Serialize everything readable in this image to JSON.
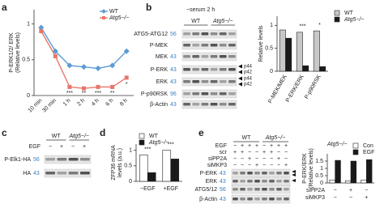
{
  "panel_labels": [
    "a",
    "b",
    "c",
    "d",
    "e"
  ],
  "chart_data": [
    {
      "type": "line",
      "ylabel": [
        "P-ERK1/2/ ERK",
        "(Relative levels)"
      ],
      "categories": [
        "10 min",
        "30 min",
        "1 h",
        "2 h",
        "4 h",
        "6 h",
        "8 h"
      ],
      "series": [
        {
          "name": "WT",
          "color": "#5b9bd5",
          "values": [
            0.95,
            0.62,
            0.42,
            0.4,
            0.38,
            0.42,
            0.62
          ]
        },
        {
          "name": "Atg5−/−",
          "color": "#e8766a",
          "values": [
            0.9,
            0.55,
            0.12,
            0.1,
            0.12,
            0.12,
            0.25
          ]
        }
      ],
      "ylim": [
        0,
        1.2
      ],
      "yticks": [
        0,
        0.5,
        1
      ],
      "significance": [
        null,
        null,
        "***",
        "**",
        "***",
        "**",
        "*"
      ],
      "legend": "upper right"
    },
    {
      "type": "bar",
      "ylabel": [
        "Relative levels"
      ],
      "categories": [
        "P-MEK/MEK",
        "P-ERK/ERK",
        "P-p90RSK"
      ],
      "series": [
        {
          "name": "WT",
          "color": "#c8c8c8",
          "values": [
            0.9,
            0.85,
            0.88
          ]
        },
        {
          "name": "Atg5−/−",
          "color": "#1a1a1a",
          "values": [
            0.72,
            0.12,
            0.1
          ]
        }
      ],
      "ylim": [
        0,
        1.2
      ],
      "yticks": [
        0,
        0.5,
        1
      ],
      "significance": [
        null,
        "***",
        "*"
      ],
      "legend": "right"
    },
    {
      "type": "bar",
      "ylabel": [
        "ZFP36 mRNA",
        "levels (a.u.)"
      ],
      "categories": [
        "−EGF",
        "+EGF"
      ],
      "series": [
        {
          "name": "WT",
          "color": "#ffffff",
          "values": [
            0.85,
            1.0
          ]
        },
        {
          "name": "Atg5−/−",
          "color": "#1a1a1a",
          "values": [
            0.28,
            0.72
          ]
        }
      ],
      "ylim": [
        0,
        1.2
      ],
      "yticks": [
        0,
        0.5,
        1
      ],
      "significance": [
        "***",
        "***"
      ],
      "legend": "upper left"
    },
    {
      "type": "bar",
      "title": "Atg5−/−",
      "ylabel": [
        "P-ERK/ERK",
        "(Relative levels)"
      ],
      "categories": [
        null,
        null,
        null
      ],
      "series": [
        {
          "name": "Con",
          "color": "#ffffff",
          "values": [
            0.2,
            0.15,
            0.2
          ]
        },
        {
          "name": "EGF",
          "color": "#1a1a1a",
          "values": [
            1.55,
            1.5,
            1.6
          ]
        }
      ],
      "ylim": [
        0,
        2
      ],
      "yticks": [
        0,
        0.5,
        1,
        1.5
      ],
      "legend": "upper right",
      "conditions": [
        {
          "label": "siPP2A",
          "signs": [
            "−",
            "+",
            "−"
          ]
        },
        {
          "label": "siMKP3",
          "signs": [
            "−",
            "−",
            "+"
          ]
        }
      ]
    }
  ],
  "blot_b": {
    "condition": "−serum 2 h",
    "genotypes": [
      "WT",
      "Atg5−/−"
    ],
    "rows": [
      {
        "label": "ATG5-ATG12",
        "mw": 56
      },
      {
        "label": "P-MEK"
      },
      {
        "label": "MEK",
        "mw": 43
      },
      {
        "label": "P-ERK",
        "mw": 43
      },
      {
        "label": "ERK",
        "mw": 43
      },
      {
        "label": "P-p90RSK",
        "mw": 96
      },
      {
        "label": "β-Actin",
        "mw": 43
      }
    ],
    "bands": [
      "p44",
      "p42",
      "p44",
      "p42"
    ]
  },
  "blot_c": {
    "genotypes": [
      "WT",
      "Atg5−/−"
    ],
    "treatments": [
      {
        "label": "EGF",
        "signs": [
          "−",
          "+",
          "−",
          "+"
        ]
      }
    ],
    "rows": [
      {
        "label": "P-Elk1-HA",
        "mw": 56
      },
      {
        "label": "HA",
        "mw": 43
      }
    ]
  },
  "blot_e": {
    "genotypes": [
      "WT",
      "Atg5−/−"
    ],
    "treatments": [
      {
        "label": "EGF",
        "signs": [
          "−",
          "+",
          "+",
          "+",
          "−",
          "+",
          "+",
          "+"
        ]
      },
      {
        "label": "scr",
        "signs": [
          "+",
          "+",
          "−",
          "−",
          "+",
          "+",
          "−",
          "−"
        ]
      },
      {
        "label": "siPP2A",
        "signs": [
          "−",
          "−",
          "+",
          "−",
          "−",
          "−",
          "+",
          "−"
        ]
      },
      {
        "label": "siMKP3",
        "signs": [
          "−",
          "−",
          "−",
          "+",
          "−",
          "−",
          "−",
          "+"
        ]
      }
    ],
    "rows": [
      {
        "label": "P-ERK",
        "mw": 43
      },
      {
        "label": "ERK",
        "mw": 43
      },
      {
        "label": "ATG5/12",
        "mw": 56
      },
      {
        "label": "β-Actin",
        "mw": 43
      }
    ]
  }
}
